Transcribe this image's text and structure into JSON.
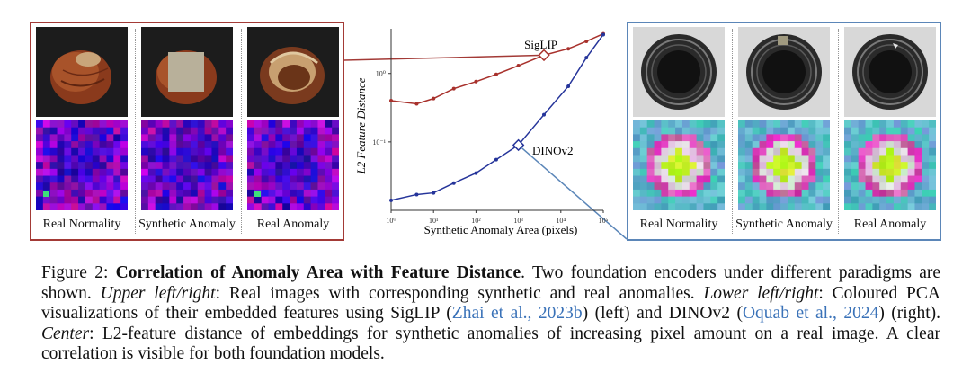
{
  "left_panel": {
    "captions": [
      "Real Normality",
      "Synthetic Anomaly",
      "Real Anomaly"
    ],
    "encoder": "SigLIP"
  },
  "right_panel": {
    "captions": [
      "Real Normality",
      "Synthetic Anomaly",
      "Real Anomaly"
    ],
    "encoder": "DINOv2"
  },
  "chart_data": {
    "type": "line",
    "xscale": "log",
    "yscale": "log",
    "xlabel": "Synthetic Anomaly Area (pixels)",
    "ylabel": "L2 Feature Distance",
    "xlim": [
      1,
      100000
    ],
    "ylim": [
      0.01,
      4.5
    ],
    "x_ticks": [
      "10⁰",
      "10¹",
      "10²",
      "10³",
      "10⁴",
      "10⁵"
    ],
    "y_ticks": [
      "10⁰",
      "10⁻¹"
    ],
    "series": [
      {
        "name": "SigLIP",
        "color": "#a8312c",
        "x": [
          1,
          4,
          10,
          30,
          100,
          300,
          1000,
          4000,
          15000,
          40000,
          100000
        ],
        "y": [
          0.4,
          0.36,
          0.43,
          0.6,
          0.76,
          0.97,
          1.3,
          1.85,
          2.3,
          2.95,
          3.8
        ],
        "highlight_x": 4000
      },
      {
        "name": "DINOv2",
        "color": "#25349a",
        "x": [
          1,
          4,
          10,
          30,
          100,
          300,
          1000,
          4000,
          15000,
          40000,
          100000
        ],
        "y": [
          0.014,
          0.017,
          0.018,
          0.025,
          0.035,
          0.055,
          0.09,
          0.25,
          0.65,
          1.7,
          3.7
        ],
        "highlight_x": 1000
      }
    ]
  },
  "caption": {
    "label": "Figure 2:",
    "title": "Correlation of Anomaly Area with Feature Distance",
    "text_1": ". Two foundation encoders under different paradigms are shown. ",
    "upper_label": "Upper left/right",
    "text_2": ": Real images with corresponding synthetic and real anomalies. ",
    "lower_label": "Lower left/right",
    "text_3": ": Coloured PCA visualizations of their embedded features using SigLIP (",
    "cite_1": "Zhai et al., 2023b",
    "text_4": ") (left) and DINOv2 (",
    "cite_2": "Oquab et al., 2024",
    "text_5": ") (right). ",
    "center_label": "Center",
    "text_6": ": L2-feature distance of embeddings for synthetic anomalies of increasing pixel amount on a real image. A clear correlation is visible for both foundation models."
  }
}
